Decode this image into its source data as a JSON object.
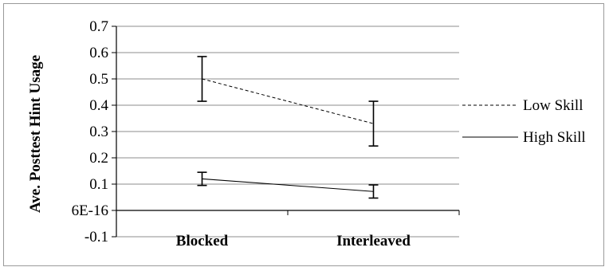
{
  "chart_data": {
    "type": "line",
    "title": "",
    "xlabel": "",
    "ylabel": "Ave. Posttest Hint Usage",
    "categories": [
      "Blocked",
      "Interleaved"
    ],
    "y_tick_labels": [
      "0.7",
      "0.6",
      "0.5",
      "0.4",
      "0.3",
      "0.2",
      "0.1",
      "6E-16",
      "-0.1"
    ],
    "y_tick_values": [
      0.7,
      0.6,
      0.5,
      0.4,
      0.3,
      0.2,
      0.1,
      0.0,
      -0.1
    ],
    "ylim": [
      -0.1,
      0.7
    ],
    "grid": "horizontal",
    "legend_position": "right",
    "series": [
      {
        "name": "Low Skill",
        "line_style": "dashed",
        "values": [
          0.5,
          0.33
        ],
        "error_low": [
          0.415,
          0.245
        ],
        "error_high": [
          0.585,
          0.415
        ]
      },
      {
        "name": "High Skill",
        "line_style": "solid",
        "values": [
          0.12,
          0.072
        ],
        "error_low": [
          0.095,
          0.047
        ],
        "error_high": [
          0.145,
          0.097
        ]
      }
    ]
  }
}
